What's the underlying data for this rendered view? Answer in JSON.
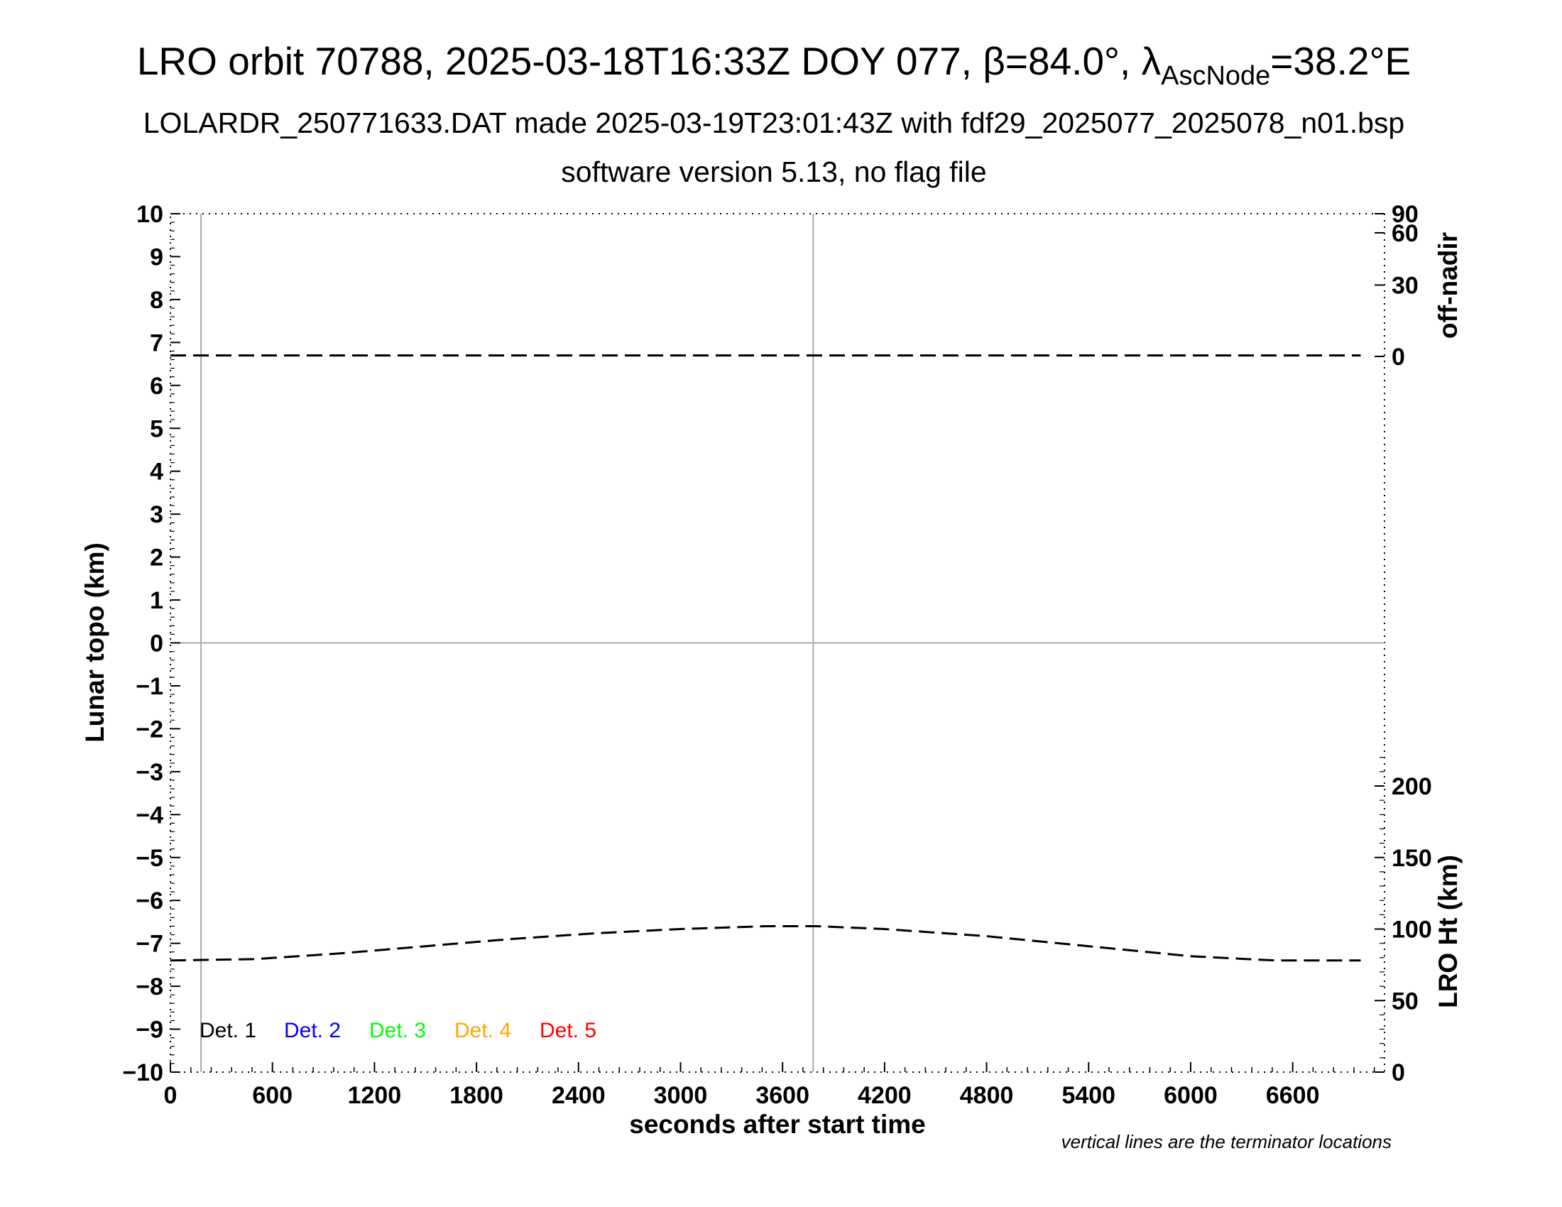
{
  "title": {
    "main_prefix": "LRO orbit 70788, 2025-03-18T16:33Z DOY 077, β=84.0°, λ",
    "main_sub": "AscNode",
    "main_suffix": "=38.2°E",
    "line2": "LOLARDR_250771633.DAT made 2025-03-19T23:01:43Z with fdf29_2025077_2025078_n01.bsp",
    "line3": "software version 5.13, no flag file"
  },
  "footnote": "vertical lines are the terminator locations",
  "colors": {
    "det1": "#000000",
    "det2": "#0000ff",
    "det3": "#00ff00",
    "det4": "#ffa500",
    "det5": "#ff0000",
    "terminator": "#aaaaaa"
  },
  "chart_data": {
    "type": "line",
    "xlabel": "seconds after start time",
    "ylabel": "Lunar topo (km)",
    "y2label_top": "off-nadir",
    "y2label_bottom": "LRO Ht (km)",
    "xlim": [
      0,
      7140
    ],
    "ylim": [
      -10,
      10
    ],
    "x_ticks": [
      "0",
      "600",
      "1200",
      "1800",
      "2400",
      "3000",
      "3600",
      "4200",
      "4800",
      "5400",
      "6000",
      "6600"
    ],
    "y_ticks": [
      "10",
      "9",
      "8",
      "7",
      "6",
      "5",
      "4",
      "3",
      "2",
      "1",
      "0",
      "−1",
      "−2",
      "−3",
      "−4",
      "−5",
      "−6",
      "−7",
      "−8",
      "−9",
      "−10"
    ],
    "offnadir_ticks": [
      "90",
      "60",
      "30",
      "0"
    ],
    "ht_ticks": [
      "200",
      "150",
      "100",
      "50",
      "0"
    ],
    "ht_range": [
      0,
      240
    ],
    "terminators_s": [
      180,
      3780
    ],
    "grid": "zero line and terminators only",
    "legend": {
      "placement": "bottom-left",
      "entries": [
        "Det. 1",
        "Det. 2",
        "Det. 3",
        "Det. 4",
        "Det. 5"
      ]
    },
    "series": [
      {
        "axis": "off-nadir",
        "style": "dashed",
        "x": [
          0,
          1000,
          2000,
          3000,
          4000,
          5000,
          6000,
          7000
        ],
        "values": [
          0.4,
          0.4,
          0.4,
          0.4,
          0.4,
          0.4,
          0.4,
          0.4
        ]
      },
      {
        "axis": "LRO Ht",
        "style": "dashed",
        "x": [
          0,
          500,
          1000,
          1500,
          2000,
          2500,
          3000,
          3500,
          3800,
          4200,
          4800,
          5400,
          6000,
          6500,
          7000
        ],
        "values": [
          78,
          79,
          83,
          88,
          93,
          97,
          100,
          102,
          102,
          100,
          95,
          88,
          81,
          78,
          78
        ]
      }
    ]
  }
}
